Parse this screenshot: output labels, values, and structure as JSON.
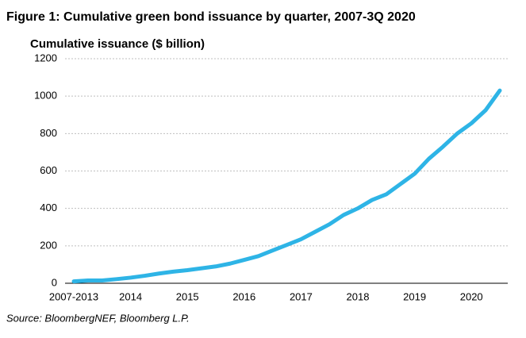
{
  "chart_data": {
    "type": "line",
    "title": "Figure 1: Cumulative green bond issuance by quarter, 2007-3Q 2020",
    "y_label": "Cumulative issuance ($ billion)",
    "source": "Source: BloombergNEF, Bloomberg L.P.",
    "categories": [
      "2007-2013",
      null,
      null,
      null,
      "2014",
      null,
      null,
      null,
      "2015",
      null,
      null,
      null,
      "2016",
      null,
      null,
      null,
      "2017",
      null,
      null,
      null,
      "2018",
      null,
      null,
      null,
      "2019",
      null,
      null,
      null,
      "2020",
      null,
      null
    ],
    "series": [
      {
        "name": "Cumulative issuance",
        "color": "#2eb4e6",
        "values": [
          10,
          15,
          15,
          22,
          30,
          40,
          52,
          62,
          70,
          80,
          90,
          105,
          125,
          145,
          175,
          205,
          235,
          275,
          315,
          365,
          400,
          445,
          475,
          530,
          585,
          665,
          730,
          800,
          855,
          925,
          1030
        ]
      }
    ],
    "ylim": [
      0,
      1200
    ],
    "yticks": [
      0,
      200,
      400,
      600,
      800,
      1000,
      1200
    ],
    "grid": true
  }
}
